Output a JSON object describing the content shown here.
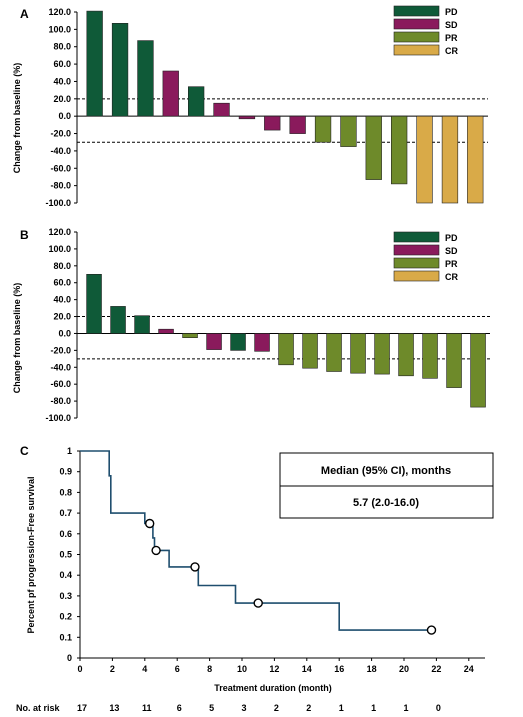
{
  "colors": {
    "PD": "#0f5a38",
    "SD": "#8a1a5c",
    "PR": "#6e8a2a",
    "CR": "#d9aa48",
    "km_line": "#1f4e6e"
  },
  "chart_data": [
    {
      "panel": "A",
      "type": "bar",
      "ylabel": "Change from baseline (%)",
      "ylim": [
        -100,
        120
      ],
      "yticks": [
        "120.0",
        "100.0",
        "80.0",
        "60.0",
        "40.0",
        "20.0",
        "0.0",
        "-20.0",
        "-40.0",
        "-60.0",
        "-80.0",
        "-100.0"
      ],
      "reference_lines": [
        20,
        -30
      ],
      "legend": [
        {
          "key": "PD",
          "label": "PD"
        },
        {
          "key": "SD",
          "label": "SD"
        },
        {
          "key": "PR",
          "label": "PR"
        },
        {
          "key": "CR",
          "label": "CR"
        }
      ],
      "values": [
        121,
        107,
        87,
        52,
        34,
        15,
        -3,
        -16,
        -20,
        -30,
        -35,
        -73,
        -78,
        -100,
        -100,
        -100
      ],
      "response": [
        "PD",
        "PD",
        "PD",
        "SD",
        "PD",
        "SD",
        "SD",
        "SD",
        "SD",
        "PR",
        "PR",
        "PR",
        "PR",
        "CR",
        "CR",
        "CR"
      ]
    },
    {
      "panel": "B",
      "type": "bar",
      "ylabel": "Change from baseline (%)",
      "ylim": [
        -100,
        120
      ],
      "yticks": [
        "120.0",
        "100.0",
        "80.0",
        "60.0",
        "40.0",
        "20.0",
        "0.0",
        "-20.0",
        "-40.0",
        "-60.0",
        "-80.0",
        "-100.0"
      ],
      "reference_lines": [
        20,
        -30
      ],
      "legend": [
        {
          "key": "PD",
          "label": "PD"
        },
        {
          "key": "SD",
          "label": "SD"
        },
        {
          "key": "PR",
          "label": "PR"
        },
        {
          "key": "CR",
          "label": "CR"
        }
      ],
      "values": [
        70,
        32,
        21,
        5,
        -5,
        -19,
        -20,
        -21,
        -37,
        -41,
        -45,
        -47,
        -48,
        -50,
        -53,
        -64,
        -87
      ],
      "response": [
        "PD",
        "PD",
        "PD",
        "SD",
        "PR",
        "SD",
        "PD",
        "SD",
        "PR",
        "PR",
        "PR",
        "PR",
        "PR",
        "PR",
        "PR",
        "PR",
        "PR"
      ]
    },
    {
      "panel": "C",
      "type": "line",
      "ylabel": "Percent pf progression-Free survival",
      "xlabel": "Treatment duration (month)",
      "xlim": [
        0,
        25
      ],
      "ylim": [
        0,
        1
      ],
      "xticks": [
        "0",
        "2",
        "4",
        "6",
        "8",
        "10",
        "12",
        "14",
        "16",
        "18",
        "20",
        "22",
        "24"
      ],
      "yticks": [
        "0",
        "0.1",
        "0.2",
        "0.3",
        "0.4",
        "0.5",
        "0.6",
        "0.7",
        "0.8",
        "0.9",
        "1"
      ],
      "steps": [
        [
          0,
          1.0
        ],
        [
          1.8,
          1.0
        ],
        [
          1.8,
          0.88
        ],
        [
          1.9,
          0.88
        ],
        [
          1.9,
          0.7
        ],
        [
          4.0,
          0.7
        ],
        [
          4.0,
          0.65
        ],
        [
          4.5,
          0.65
        ],
        [
          4.5,
          0.58
        ],
        [
          4.6,
          0.58
        ],
        [
          4.6,
          0.52
        ],
        [
          5.5,
          0.52
        ],
        [
          5.5,
          0.44
        ],
        [
          7.3,
          0.44
        ],
        [
          7.3,
          0.35
        ],
        [
          9.6,
          0.35
        ],
        [
          9.6,
          0.265
        ],
        [
          16.0,
          0.265
        ],
        [
          16.0,
          0.135
        ],
        [
          21.8,
          0.135
        ]
      ],
      "censored": [
        [
          4.3,
          0.65
        ],
        [
          4.7,
          0.52
        ],
        [
          7.1,
          0.44
        ],
        [
          11.0,
          0.265
        ],
        [
          21.7,
          0.135
        ]
      ],
      "median_box_header": "Median (95% CI), months",
      "median_box_value": "5.7 (2.0-16.0)",
      "at_risk_label": "No. at risk",
      "at_risk": [
        "17",
        "13",
        "11",
        "6",
        "5",
        "3",
        "2",
        "2",
        "1",
        "1",
        "1",
        "0"
      ]
    }
  ]
}
